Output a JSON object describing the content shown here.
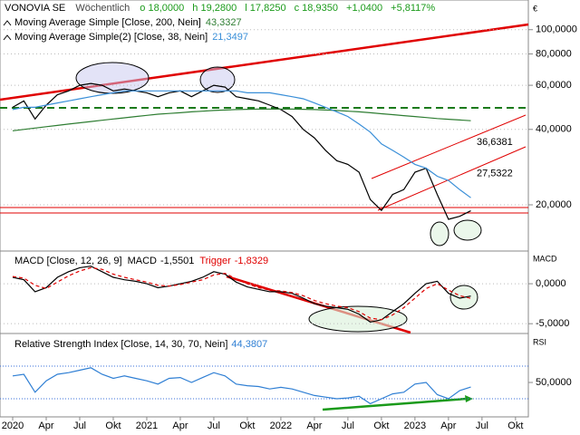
{
  "header": {
    "name": "VONOVIA SE",
    "period": "Wöchentlich",
    "ohlc": [
      "o 18,0000",
      "h 19,2800",
      "l 17,8250",
      "c 18,9350"
    ],
    "change": "+1,0400",
    "change_pct": "+5,8117%",
    "currency": "€"
  },
  "chart_data": [
    {
      "type": "line",
      "log": true,
      "grid": true,
      "categories": [
        "2020",
        null,
        null,
        "Apr",
        null,
        null,
        "Jul",
        null,
        null,
        "Okt",
        null,
        null,
        "2021",
        null,
        null,
        "Apr",
        null,
        null,
        "Jul",
        null,
        null,
        "Okt",
        null,
        null,
        "2022",
        null,
        null,
        "Apr",
        null,
        null,
        "Jul",
        null,
        null,
        "Okt",
        null,
        null,
        "2023",
        null,
        null,
        "Apr",
        null,
        null,
        "Jul",
        null,
        null,
        "Okt"
      ],
      "ylim": [
        13.3,
        126
      ],
      "yticks": [
        {
          "value": 100,
          "label": "100,0000"
        },
        {
          "value": 80,
          "label": "80,0000"
        },
        {
          "value": 60,
          "label": "60,0000"
        },
        {
          "value": 40,
          "label": "40,0000"
        },
        {
          "value": 20,
          "label": "20,0000"
        }
      ],
      "series": [
        {
          "color": "#000000",
          "values": [
            49,
            52,
            44,
            50,
            55,
            57,
            60,
            61,
            60,
            57,
            58,
            57,
            56,
            54,
            56,
            57,
            54,
            57,
            60,
            59,
            54,
            53,
            52,
            50,
            48,
            45,
            40,
            37,
            33,
            30,
            29,
            27,
            21,
            19,
            22,
            23,
            27,
            28,
            22,
            17.5,
            18,
            18.935,
            null,
            null,
            null,
            null
          ]
        },
        {
          "name": "Moving Average Simple  [Close, 200, Nein]",
          "last": "43,3327",
          "color": "#2e7d32",
          "values": [
            39.5,
            40,
            40.5,
            41,
            41.5,
            42,
            42.5,
            43,
            43.5,
            44,
            44.5,
            45,
            45.5,
            46,
            46.3,
            46.6,
            47,
            47.3,
            47.6,
            47.8,
            48,
            48.1,
            48.2,
            48.2,
            48.2,
            48.2,
            48.1,
            48,
            47.8,
            47.6,
            47.3,
            47,
            46.6,
            46.2,
            45.8,
            45.4,
            45,
            44.6,
            44.2,
            43.9,
            43.6,
            43.3327,
            null,
            null,
            null,
            null
          ]
        },
        {
          "name": "Moving Average Simple(2)  [Close, 38, Nein]",
          "last": "21,3497",
          "color": "#3a8fd8",
          "values": [
            48,
            49,
            49,
            50,
            51,
            52,
            53,
            54,
            55,
            56,
            57,
            57,
            57,
            57,
            57,
            57,
            57,
            57,
            57,
            57,
            57,
            56,
            56,
            56,
            55,
            54,
            53,
            51,
            49,
            47,
            45,
            42,
            39,
            35,
            33,
            31,
            29,
            28,
            26,
            25,
            23,
            21.3497,
            null,
            null,
            null,
            null
          ]
        }
      ],
      "annotations": [
        {
          "value": 36.6381,
          "label": "36,6381"
        },
        {
          "value": 27.5322,
          "label": "27,5322"
        }
      ]
    },
    {
      "type": "line",
      "title": "MACD  [Close, 12, 26, 9]",
      "axis_label": "MACD",
      "grid": true,
      "ylim": [
        -6.0,
        3.75
      ],
      "yticks": [
        {
          "value": 0,
          "label": "0,0000"
        },
        {
          "value": -5,
          "label": "-5,0000"
        }
      ],
      "series": [
        {
          "name": "MACD",
          "last": "-1,5501",
          "color": "#000000",
          "values": [
            0.8,
            0.5,
            -1.0,
            -0.5,
            0.8,
            1.5,
            2.0,
            2.2,
            1.5,
            0.8,
            0.5,
            0.3,
            0.0,
            -0.5,
            -0.3,
            0.0,
            0.3,
            0.8,
            1.5,
            1.2,
            0.2,
            -0.4,
            -0.7,
            -1.0,
            -1.0,
            -1.2,
            -1.8,
            -2.5,
            -2.8,
            -3.0,
            -3.2,
            -3.8,
            -4.8,
            -4.5,
            -3.5,
            -2.5,
            -1.2,
            0.0,
            0.3,
            -1.2,
            -1.8,
            -1.5501,
            null,
            null,
            null,
            null
          ]
        },
        {
          "name": "Trigger",
          "last": "-1,8329",
          "color": "#e00000",
          "dashed": true,
          "values": [
            0.9,
            0.7,
            -0.2,
            -0.6,
            0.2,
            1.0,
            1.6,
            2.0,
            1.8,
            1.2,
            0.8,
            0.5,
            0.2,
            -0.2,
            -0.3,
            -0.1,
            0.2,
            0.5,
            1.1,
            1.3,
            0.6,
            0.0,
            -0.5,
            -0.8,
            -0.9,
            -1.1,
            -1.5,
            -2.1,
            -2.5,
            -2.8,
            -3.0,
            -3.5,
            -4.3,
            -4.5,
            -3.9,
            -3.0,
            -1.8,
            -0.6,
            0.0,
            -0.8,
            -1.5,
            -1.8329,
            null,
            null,
            null,
            null
          ]
        }
      ]
    },
    {
      "type": "line",
      "title": "Relative Strength Index  [Close, 14, 30, 70, Nein]",
      "axis_label": "RSI",
      "grid": false,
      "ylim": [
        7.8,
        105.6
      ],
      "yticks": [
        {
          "value": 50,
          "label": "50,0000"
        }
      ],
      "levels": [
        30,
        70
      ],
      "series": [
        {
          "last": "44,3807",
          "color": "#2f7fd4",
          "values": [
            58,
            60,
            38,
            52,
            60,
            62,
            65,
            68,
            60,
            55,
            58,
            55,
            52,
            48,
            55,
            56,
            50,
            56,
            62,
            58,
            48,
            46,
            45,
            42,
            44,
            42,
            38,
            34,
            32,
            30,
            31,
            33,
            24,
            30,
            36,
            38,
            48,
            50,
            35,
            30,
            40,
            44.3807,
            null,
            null,
            null,
            null
          ]
        }
      ]
    }
  ]
}
